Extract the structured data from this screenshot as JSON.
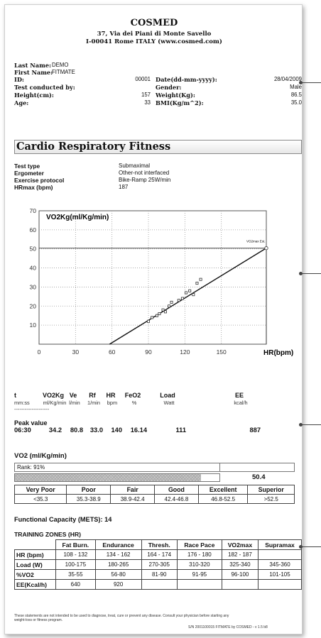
{
  "header": {
    "company": "COSMED",
    "address_line1": "37, Via dei Piani di Monte Savello",
    "address_line2": "I-00041 Rome ITALY (www.cosmed.com)"
  },
  "patient": {
    "last_name_label": "Last Name:",
    "last_name": "DEMO",
    "first_name_label": "First Name:",
    "first_name": "FITMATE",
    "id_label": "ID:",
    "id": "00001",
    "date_label": "Date(dd-mm-yyyy):",
    "date": "28/04/2009",
    "conducted_label": "Test conducted by:",
    "gender_label": "Gender:",
    "gender": "Male",
    "height_label": "Height(cm):",
    "height": "157",
    "weight_label": "Weight(Kg):",
    "weight": "86.5",
    "age_label": "Age:",
    "age": "33",
    "bmi_label": "BMI(Kg/m^2):",
    "bmi": "35.0"
  },
  "section_title": "Cardio Respiratory Fitness",
  "test_info": {
    "type_label": "Test type",
    "type": "Submaximal",
    "ergometer_label": "Ergometer",
    "ergometer": "Other-not interfaced",
    "protocol_label": "Exercise protocol",
    "protocol": "Bike-Ramp 25W/min",
    "hrmax_label": "HRmax (bpm)",
    "hrmax": "187"
  },
  "chart_data": {
    "type": "scatter",
    "title": "",
    "ylabel": "VO2Kg(ml/Kg/min)",
    "xlabel": "HR(bpm)",
    "xlim": [
      0,
      187
    ],
    "ylim": [
      0,
      70
    ],
    "xticks": [
      "0",
      "30",
      "60",
      "90",
      "120",
      "150"
    ],
    "yticks": [
      "10",
      "20",
      "30",
      "40",
      "50",
      "60",
      "70"
    ],
    "grid": true,
    "points": [
      {
        "x": 90,
        "y": 12
      },
      {
        "x": 93,
        "y": 14
      },
      {
        "x": 97,
        "y": 15
      },
      {
        "x": 99,
        "y": 16
      },
      {
        "x": 102,
        "y": 18
      },
      {
        "x": 104,
        "y": 17
      },
      {
        "x": 107,
        "y": 20
      },
      {
        "x": 109,
        "y": 22
      },
      {
        "x": 115,
        "y": 23
      },
      {
        "x": 118,
        "y": 24
      },
      {
        "x": 121,
        "y": 27
      },
      {
        "x": 124,
        "y": 28
      },
      {
        "x": 127,
        "y": 26
      },
      {
        "x": 130,
        "y": 32
      },
      {
        "x": 133,
        "y": 34
      }
    ],
    "regression": {
      "x1": 58,
      "y1": 0,
      "x2": 187,
      "y2": 50.4
    },
    "vo2max_label": "VO2max Est.",
    "vo2max": {
      "x": 187,
      "y": 50.4
    }
  },
  "results": {
    "headers": [
      "t",
      "VO2Kg",
      "Ve",
      "Rf",
      "HR",
      "FeO2",
      "Load",
      "EE"
    ],
    "units": [
      "mm:ss",
      "ml/Kg/min",
      "l/min",
      "1/min",
      "bpm",
      "%",
      "Watt",
      "kcal/h"
    ],
    "divider": "--------------------",
    "peak_label": "Peak value",
    "peak": [
      "06:30",
      "34.2",
      "80.8",
      "33.0",
      "140",
      "16.14",
      "111",
      "887"
    ]
  },
  "vo2": {
    "title": "VO2 (ml/Kg/min)",
    "rank": "Rank: 91%",
    "rank_fraction": 0.91,
    "value": "50.4",
    "categories": [
      "Very Poor",
      "Poor",
      "Fair",
      "Good",
      "Excellent",
      "Superior"
    ],
    "ranges": [
      "<35.3",
      "35.3-38.9",
      "38.9-42.4",
      "42.4-46.8",
      "46.8-52.5",
      ">52.5"
    ]
  },
  "functional_capacity": "Functional Capacity (METS): 14",
  "training": {
    "title": "TRAINING ZONES (HR)",
    "columns": [
      "Fat Burn.",
      "Endurance",
      "Thresh.",
      "Race Pace",
      "VO2max",
      "Supramax"
    ],
    "rows": [
      {
        "label": "HR (bpm)",
        "values": [
          "108 - 132",
          "134 - 162",
          "164 - 174",
          "176 - 180",
          "182 - 187",
          ""
        ]
      },
      {
        "label": "Load (W)",
        "values": [
          "100-175",
          "180-265",
          "270-305",
          "310-320",
          "325-340",
          "345-360"
        ]
      },
      {
        "label": "%VO2",
        "values": [
          "35-55",
          "56-80",
          "81-90",
          "91-95",
          "96-100",
          "101-105"
        ]
      },
      {
        "label": "EE(Kcal/h)",
        "values": [
          "640",
          "920",
          "",
          "",
          "",
          ""
        ]
      }
    ]
  },
  "footer": {
    "disclaimer_1": "These statements are not intended to be used to diagnose, treat, cure or prevent any disease. Consult your physician before starting any",
    "disclaimer_2": "weight-loss or fitness program.",
    "version": "S/N 2001100015 FITMATE by COSMED - v 1.5 b8"
  }
}
